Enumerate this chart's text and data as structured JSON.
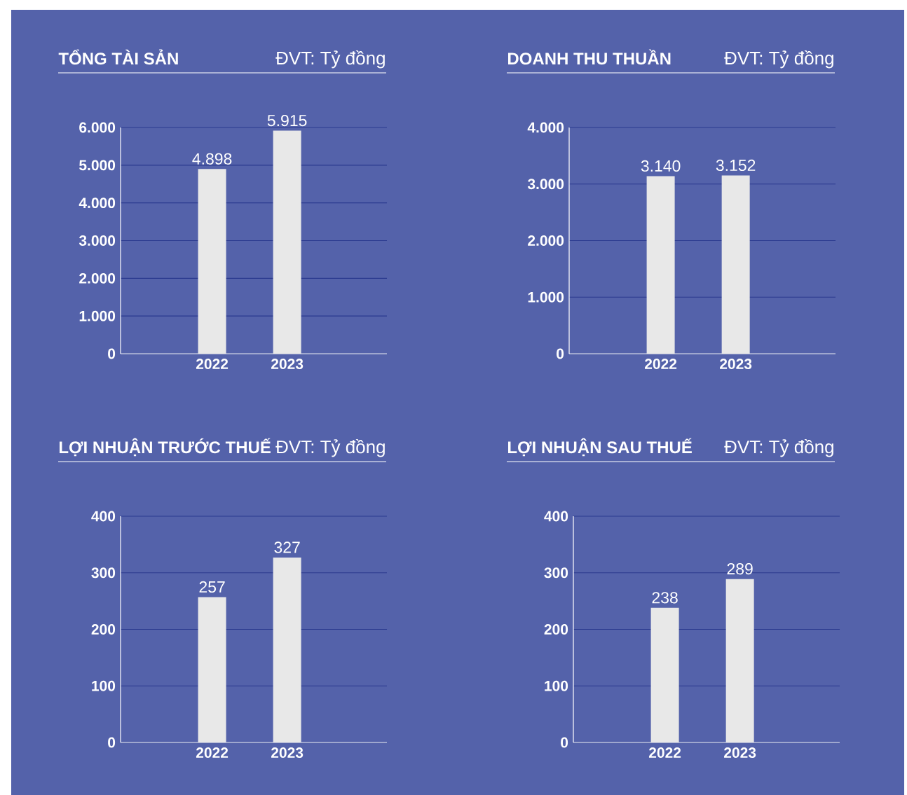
{
  "chart_data": [
    {
      "type": "bar",
      "title": "TỔNG TÀI SẢN",
      "subtitle": "ĐVT: Tỷ đồng",
      "categories": [
        "2022",
        "2023"
      ],
      "values": [
        4898,
        5915
      ],
      "value_labels": [
        "4.898",
        "5.915"
      ],
      "color": "#e8e8e8",
      "ylim": [
        0,
        6000
      ],
      "yticks": [
        0,
        {
          "value": 1000,
          "label": "1.000"
        },
        {
          "value": 2000,
          "label": "2.000"
        },
        {
          "value": 3000,
          "label": "3.000"
        },
        {
          "value": 4000,
          "label": "4.000"
        },
        {
          "value": 5000,
          "label": "5.000"
        },
        {
          "value": 6000,
          "label": "6.000"
        }
      ],
      "grid": "y"
    },
    {
      "type": "bar",
      "title": "DOANH THU THUẦN",
      "subtitle": "ĐVT: Tỷ đồng",
      "categories": [
        "2022",
        "2023"
      ],
      "values": [
        3140,
        3152
      ],
      "value_labels": [
        "3.140",
        "3.152"
      ],
      "color": "#e8e8e8",
      "ylim": [
        0,
        4000
      ],
      "yticks": [
        0,
        {
          "value": 1000,
          "label": "1.000"
        },
        {
          "value": 2000,
          "label": "2.000"
        },
        {
          "value": 3000,
          "label": "3.000"
        },
        {
          "value": 4000,
          "label": "4.000"
        }
      ],
      "grid": "y"
    },
    {
      "type": "bar",
      "title": "LỢI NHUẬN TRƯỚC THUẾ",
      "subtitle": "ĐVT: Tỷ đồng",
      "categories": [
        "2022",
        "2023"
      ],
      "values": [
        257,
        327
      ],
      "value_labels": [
        "257",
        "327"
      ],
      "color": "#e8e8e8",
      "ylim": [
        0,
        400
      ],
      "yticks": [
        0,
        100,
        200,
        300,
        400
      ],
      "grid": "y"
    },
    {
      "type": "bar",
      "title": "LỢI NHUẬN SAU THUẾ",
      "subtitle": "ĐVT: Tỷ đồng",
      "categories": [
        "2022",
        "2023"
      ],
      "values": [
        238,
        289
      ],
      "value_labels": [
        "238",
        "289"
      ],
      "color": "#e8e8e8",
      "ylim": [
        0,
        400
      ],
      "yticks": [
        0,
        100,
        200,
        300,
        400
      ],
      "grid": "y"
    }
  ]
}
